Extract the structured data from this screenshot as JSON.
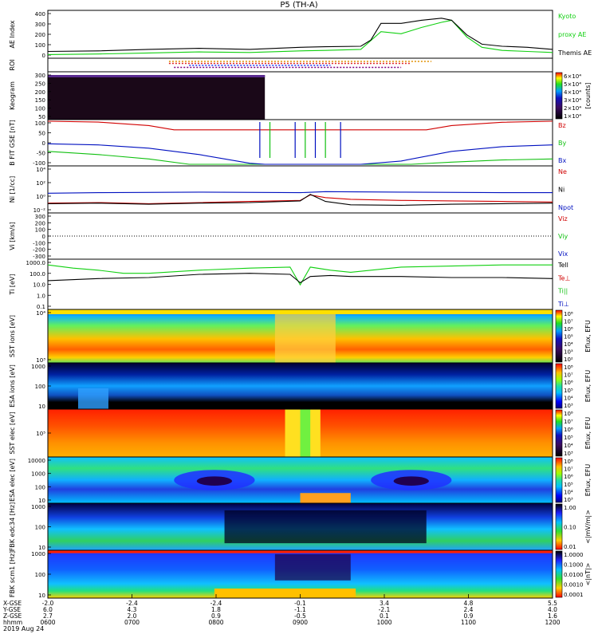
{
  "title": "P5 (TH-A)",
  "date": "2019 Aug 24",
  "chart_data": [
    {
      "panel": "ae",
      "type": "line",
      "ylabel": "AE Index",
      "yticks": [
        "400",
        "300",
        "200",
        "100",
        "0"
      ],
      "ylim": [
        -10,
        420
      ],
      "legend": [
        {
          "text": "Kyoto",
          "color": "#10d010"
        },
        {
          "text": "proxy AE",
          "color": "#10d010"
        },
        {
          "text": "Themis AE",
          "color": "#000000"
        }
      ],
      "series": [
        {
          "name": "Kyoto proxy AE",
          "color": "#10d010",
          "x": [
            0,
            0.1,
            0.2,
            0.3,
            0.4,
            0.5,
            0.55,
            0.62,
            0.66,
            0.7,
            0.74,
            0.78,
            0.8,
            0.83,
            0.86,
            0.9,
            0.95,
            1
          ],
          "values": [
            10,
            15,
            25,
            35,
            30,
            45,
            50,
            60,
            230,
            210,
            270,
            320,
            340,
            180,
            80,
            50,
            40,
            30
          ]
        },
        {
          "name": "Themis AE",
          "color": "#000000",
          "x": [
            0,
            0.1,
            0.2,
            0.3,
            0.4,
            0.5,
            0.55,
            0.62,
            0.64,
            0.66,
            0.7,
            0.74,
            0.78,
            0.8,
            0.83,
            0.86,
            0.9,
            0.95,
            1
          ],
          "values": [
            40,
            45,
            60,
            70,
            60,
            80,
            85,
            90,
            150,
            310,
            310,
            340,
            360,
            340,
            200,
            110,
            90,
            80,
            60
          ]
        }
      ]
    },
    {
      "panel": "roi",
      "type": "heatmap",
      "ylabel": "ROI",
      "rows": [
        {
          "color": "#e09000",
          "from": 0.24,
          "to": 0.76
        },
        {
          "color": "#e02020",
          "from": 0.24,
          "to": 0.72
        },
        {
          "color": "#2040ff",
          "from": 0.28,
          "to": 0.56
        },
        {
          "color": "#800080",
          "from": 0.25,
          "to": 0.7
        }
      ]
    },
    {
      "panel": "keogram",
      "type": "heatmap",
      "ylabel": "Keogram",
      "yticks": [
        "300",
        "250",
        "200",
        "150",
        "100",
        "50"
      ],
      "colorbar": {
        "ticks": [
          "6×10⁴",
          "5×10⁴",
          "4×10⁴",
          "3×10⁴",
          "2×10⁴",
          "1×10⁴"
        ],
        "unit": "[counts]"
      },
      "cover": 0.43
    },
    {
      "panel": "bfield",
      "type": "line",
      "ylabel": "B FIT GSE [nT]",
      "yticks": [
        "100",
        "50",
        "0",
        "-50",
        "-100"
      ],
      "ylim": [
        -100,
        100
      ],
      "legend": [
        {
          "text": "Bz",
          "color": "#d00000"
        },
        {
          "text": "By",
          "color": "#10c010"
        },
        {
          "text": "Bx",
          "color": "#0010c0"
        }
      ],
      "series": [
        {
          "name": "Bz",
          "color": "#d00000",
          "x": [
            0,
            0.1,
            0.2,
            0.25,
            0.75,
            0.8,
            0.9,
            1
          ],
          "values": [
            100,
            96,
            80,
            60,
            60,
            80,
            95,
            100
          ]
        },
        {
          "name": "By",
          "color": "#10c010",
          "x": [
            0,
            0.1,
            0.2,
            0.28,
            0.72,
            0.8,
            0.9,
            1
          ],
          "values": [
            -40,
            -55,
            -75,
            -100,
            -100,
            -90,
            -80,
            -75
          ]
        },
        {
          "name": "Bx",
          "color": "#0010c0",
          "x": [
            0,
            0.1,
            0.2,
            0.3,
            0.4,
            0.43,
            0.62,
            0.7,
            0.8,
            0.9,
            1
          ],
          "values": [
            -5,
            -10,
            -25,
            -55,
            -95,
            -100,
            -100,
            -85,
            -40,
            -18,
            -10
          ]
        }
      ]
    },
    {
      "panel": "density",
      "type": "line",
      "ylabel": "Ni [1/cc]",
      "yticks": [
        "10⁴",
        "10²",
        "10⁰",
        "10⁻²"
      ],
      "ylim": [
        -3,
        5
      ],
      "legend": [
        {
          "text": "Ne",
          "color": "#d00000"
        },
        {
          "text": "Ni",
          "color": "#000000"
        },
        {
          "text": "Npot",
          "color": "#0010c0"
        }
      ],
      "series": [
        {
          "name": "Ne",
          "color": "#d00000",
          "x": [
            0,
            0.1,
            0.2,
            0.3,
            0.4,
            0.5,
            0.52,
            0.55,
            0.6,
            0.7,
            0.8,
            0.9,
            1
          ],
          "values": [
            -1.5,
            -1.4,
            -1.6,
            -1.4,
            -1.2,
            -1,
            0,
            -0.5,
            -0.8,
            -1,
            -1.1,
            -1.2,
            -1.3
          ]
        },
        {
          "name": "Ni",
          "color": "#000000",
          "x": [
            0,
            0.1,
            0.2,
            0.3,
            0.4,
            0.5,
            0.52,
            0.55,
            0.6,
            0.7,
            0.8,
            0.9,
            1
          ],
          "values": [
            -1.6,
            -1.5,
            -1.7,
            -1.5,
            -1.4,
            -1.1,
            0.1,
            -1.2,
            -1.8,
            -1.9,
            -1.7,
            -1.6,
            -1.5
          ]
        },
        {
          "name": "Npot",
          "color": "#0010c0",
          "x": [
            0,
            0.1,
            0.3,
            0.5,
            0.55,
            0.7,
            0.9,
            1
          ],
          "values": [
            0.3,
            0.4,
            0.5,
            0.4,
            0.6,
            0.5,
            0.4,
            0.4
          ]
        }
      ]
    },
    {
      "panel": "velocity",
      "type": "line",
      "ylabel": "Vi [km/s]",
      "yticks": [
        "300",
        "200",
        "100",
        "0",
        "-100",
        "-200",
        "-300"
      ],
      "ylim": [
        -300,
        300
      ],
      "legend": [
        {
          "text": "Viz",
          "color": "#d00000"
        },
        {
          "text": "Viy",
          "color": "#10c010"
        },
        {
          "text": "Vix",
          "color": "#0010c0"
        }
      ],
      "series": [
        {
          "name": "zero",
          "color": "#000000",
          "x": [
            0,
            1
          ],
          "values": [
            0,
            0
          ]
        }
      ]
    },
    {
      "panel": "temperature",
      "type": "line",
      "ylabel": "Ti [eV]",
      "yticks": [
        "1000.0",
        "100.0",
        "10.0",
        "1.0",
        "0.1"
      ],
      "ylim": [
        -1,
        3.5
      ],
      "legend": [
        {
          "text": "Tell",
          "color": "#000000"
        },
        {
          "text": "Te⊥",
          "color": "#d00000"
        },
        {
          "text": "Ti||",
          "color": "#10c010"
        },
        {
          "text": "Ti⊥",
          "color": "#0010c0"
        }
      ],
      "series": [
        {
          "name": "Ti",
          "color": "#10d010",
          "x": [
            0,
            0.05,
            0.1,
            0.15,
            0.2,
            0.3,
            0.4,
            0.48,
            0.5,
            0.52,
            0.56,
            0.6,
            0.7,
            0.8,
            0.9,
            1
          ],
          "values": [
            3.1,
            2.8,
            2.6,
            2.3,
            2.3,
            2.6,
            2.8,
            2.9,
            1.2,
            2.9,
            2.6,
            2.4,
            2.9,
            3.0,
            3.1,
            3.1
          ]
        },
        {
          "name": "Te",
          "color": "#000000",
          "x": [
            0,
            0.1,
            0.2,
            0.3,
            0.4,
            0.48,
            0.5,
            0.52,
            0.56,
            0.6,
            0.7,
            0.8,
            0.9,
            1
          ],
          "values": [
            1.6,
            1.8,
            1.9,
            2.2,
            2.3,
            2.2,
            1.4,
            2.0,
            2.1,
            2.0,
            2.0,
            1.9,
            1.9,
            1.8
          ]
        }
      ]
    },
    {
      "panel": "sst_ion",
      "type": "heatmap",
      "ylabel": "SST ions [eV]",
      "yticks": [
        "10⁴",
        "10³"
      ],
      "colorbar": {
        "ticks": [
          "10⁸",
          "10⁷",
          "10⁶",
          "10⁵",
          "10⁴",
          "10³",
          "10²"
        ],
        "unit": "Eflux, EFU"
      }
    },
    {
      "panel": "esa_ion",
      "type": "heatmap",
      "ylabel": "ESA ions [eV]",
      "yticks": [
        "1000",
        "100",
        "10"
      ],
      "colorbar": {
        "ticks": [
          "10⁸",
          "10⁷",
          "10⁶",
          "10⁵",
          "10⁴",
          "10³"
        ],
        "unit": "Eflux, EFU"
      }
    },
    {
      "panel": "sst_elec",
      "type": "heatmap",
      "ylabel": "SST elec [eV]",
      "yticks": [
        "10⁵"
      ],
      "colorbar": {
        "ticks": [
          "10⁸",
          "10⁷",
          "10⁶",
          "10⁵",
          "10⁴",
          "10³"
        ],
        "unit": "Eflux, EFU"
      }
    },
    {
      "panel": "esa_elec",
      "type": "heatmap",
      "ylabel": "ESA elec [eV]",
      "yticks": [
        "10000",
        "1000",
        "100",
        "10"
      ],
      "colorbar": {
        "ticks": [
          "10⁸",
          "10⁷",
          "10⁶",
          "10⁵",
          "10⁴",
          "10³"
        ],
        "unit": "Eflux, EFU"
      }
    },
    {
      "panel": "fbk_e",
      "type": "heatmap",
      "ylabel": "FBK edc34 [Hz]",
      "yticks": [
        "1000",
        "100",
        "10"
      ],
      "colorbar": {
        "ticks": [
          "1.00",
          "0.10",
          "0.01"
        ],
        "unit": "<|mV/m|>"
      }
    },
    {
      "panel": "fbk_b",
      "type": "heatmap",
      "ylabel": "FBK scm1 [Hz]",
      "yticks": [
        "1000",
        "100",
        "10"
      ],
      "colorbar": {
        "ticks": [
          "1.0000",
          "0.1000",
          "0.0100",
          "0.0010",
          "0.0001"
        ],
        "unit": "<|nT|>"
      }
    },
    {
      "panel": "xaxis",
      "type": "table",
      "rows": [
        {
          "label": "X-GSE",
          "values": [
            "-2.0",
            "-2.4",
            "-2.4",
            "-0.1",
            "3.4",
            "4.8",
            "5.5"
          ]
        },
        {
          "label": "Y-GSE",
          "values": [
            "6.0",
            "4.3",
            "1.8",
            "-1.1",
            "-2.1",
            "2.4",
            "4.0"
          ]
        },
        {
          "label": "Z-GSE",
          "values": [
            "2.7",
            "2.0",
            "0.9",
            "-0.5",
            "0.1",
            "0.9",
            "1.6"
          ]
        },
        {
          "label": "hhmm",
          "values": [
            "0600",
            "0700",
            "0800",
            "0900",
            "1000",
            "1100",
            "1200"
          ]
        }
      ]
    }
  ]
}
